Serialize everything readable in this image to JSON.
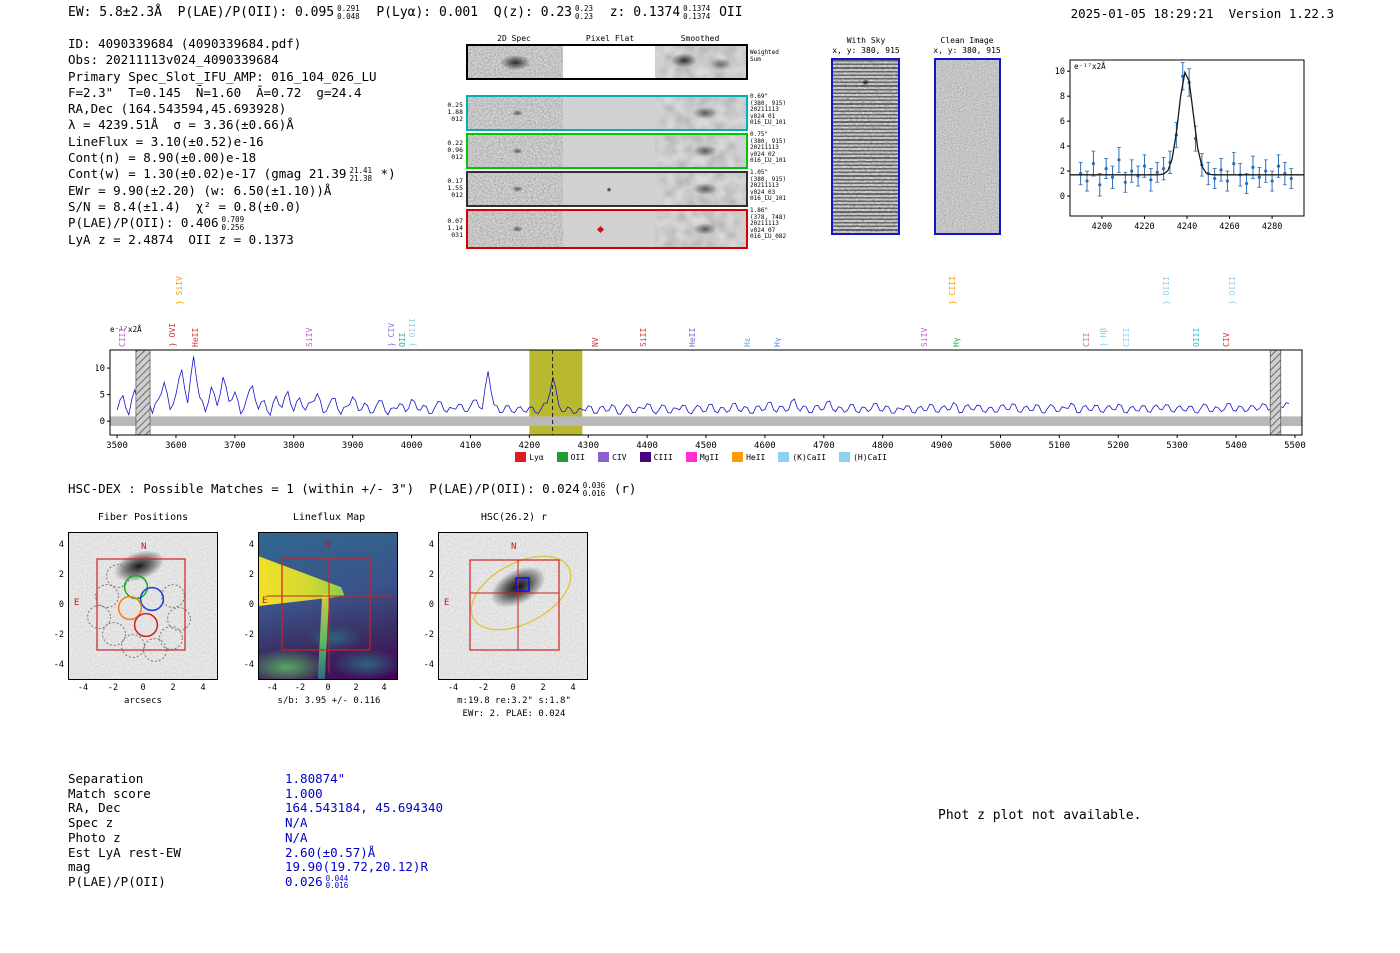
{
  "header": {
    "left_ew": "EW: 5.8±2.3Å  P(LAE)/P(OII): 0.095",
    "plae_hi": "0.291",
    "plae_lo": "0.048",
    "mid1": "  P(Lyα): 0.001  Q(z): 0.23",
    "qz_hi": "0.23",
    "qz_lo": "0.23",
    "mid2": "  z: 0.1374",
    "z_hi": "0.1374",
    "z_lo": "0.1374",
    "line_id": " OII",
    "timestamp": "2025-01-05 18:29:21  Version 1.22.3"
  },
  "info": {
    "l1": "ID: 4090339684 (4090339684.pdf)",
    "l2": "Obs: 20211113v024_4090339684",
    "l3": "Primary Spec_Slot_IFU_AMP: 016_104_026_LU",
    "l4": "F=2.3\"  T=0.145  N̄=1.60  Ā=0.72  g=24.4",
    "l5": "RA,Dec (164.543594,45.693928)",
    "l6": "λ = 4239.51Å  σ = 3.36(±0.66)Å",
    "l7": "LineFlux = 3.10(±0.52)e-16",
    "l8": "Cont(n) = 8.90(±0.00)e-18",
    "l9_pre": "Cont(w) = 1.30(±0.02)e-17 (gmag 21.39",
    "l9_hi": "21.41",
    "l9_lo": "21.38",
    "l9_post": " *)",
    "l10": "EWr = 9.90(±2.20) (w: 6.50(±1.10))Å",
    "l11": "S/N = 8.4(±1.4)  χ² = 0.8(±0.0)",
    "l12_pre": "P(LAE)/P(OII): 0.406",
    "l12_hi": "0.709",
    "l12_lo": "0.256",
    "l13": "LyA z = 2.4874  OII z = 0.1373"
  },
  "cutouts": {
    "col_headers": [
      "2D Spec",
      "Pixel Flat",
      "Smoothed"
    ],
    "weighted_sum": [
      "Weighted",
      "Sum"
    ],
    "rows": [
      {
        "left": [
          "0.25",
          "1.88",
          "012"
        ],
        "right": [
          "0.69\"",
          "(380, 915)",
          "20211113",
          "v024_01",
          "016_LU_101"
        ],
        "border": "#00b2b2"
      },
      {
        "left": [
          "0.22",
          "0.96",
          "012"
        ],
        "right": [
          "0.75\"",
          "(380, 915)",
          "20211113",
          "v024_02",
          "016_LU_101"
        ],
        "border": "#00c800"
      },
      {
        "left": [
          "0.17",
          "1.55",
          "012"
        ],
        "right": [
          "1.05\"",
          "(380, 915)",
          "20211113",
          "v024_03",
          "016_LU_101"
        ],
        "border": "#303030"
      },
      {
        "left": [
          "0.07",
          "1.14",
          "031"
        ],
        "right": [
          "1.86\"",
          "(378, 748)",
          "20211113",
          "v024_07",
          "016_LU_082"
        ],
        "border": "#d40000"
      }
    ]
  },
  "sky": {
    "with_sky": {
      "title": "With Sky",
      "coords": "x, y: 380, 915"
    },
    "clean": {
      "title": "Clean Image",
      "coords": "x, y: 380, 915"
    }
  },
  "hsc": {
    "header_pre": "HSC-DEX : Possible Matches = 1 (within +/- 3\")  P(LAE)/P(OII): 0.024",
    "header_hi": "0.036",
    "header_lo": "0.016",
    "header_post": " (r)",
    "ticks": [
      -4,
      -2,
      0,
      2,
      4
    ],
    "compass": {
      "n": "N",
      "e": "E"
    },
    "panels": [
      {
        "title": "Fiber Positions",
        "xlabel": "arcsecs"
      },
      {
        "title": "Lineflux Map",
        "caption": "s/b: 3.95 +/- 0.116"
      },
      {
        "title": "HSC(26.2) r",
        "caption1": "m:19.8 re:3.2\" s:1.8\"",
        "caption2": "EWr: 2. PLAE: 0.024"
      }
    ]
  },
  "match_table": {
    "value_color": "#0000cc",
    "rows": [
      {
        "label": "Separation",
        "value": "1.80874\""
      },
      {
        "label": "Match score",
        "value": "1.000"
      },
      {
        "label": "RA, Dec",
        "value": "164.543184, 45.694340"
      },
      {
        "label": "Spec z",
        "value": "N/A"
      },
      {
        "label": "Photo z",
        "value": "N/A"
      },
      {
        "label": "Est LyA rest-EW",
        "value": "2.60(±0.57)Å"
      },
      {
        "label": "mag",
        "value": "19.90(19.72,20.12)R"
      },
      {
        "label": "P(LAE)/P(OII)",
        "value": "0.026",
        "hi": "0.044",
        "lo": "0.016"
      }
    ]
  },
  "notice": "Phot z plot not available.",
  "chart_data": [
    {
      "type": "scatter",
      "name": "emission-line-gaussian-fit",
      "title": "",
      "xlabel": "",
      "ylabel": "e⁻¹⁷x2Å",
      "xlim": [
        4185,
        4295
      ],
      "ylim": [
        -1.6,
        10.9
      ],
      "xticks": [
        4200,
        4220,
        4240,
        4260,
        4280
      ],
      "yticks": [
        0,
        2,
        4,
        6,
        8,
        10
      ],
      "points_x": [
        4190,
        4193,
        4196,
        4199,
        4202,
        4205,
        4208,
        4211,
        4214,
        4217,
        4220,
        4223,
        4226,
        4229,
        4232,
        4235,
        4238,
        4241,
        4244,
        4247,
        4250,
        4253,
        4256,
        4259,
        4262,
        4265,
        4268,
        4271,
        4274,
        4277,
        4280,
        4283,
        4286,
        4289
      ],
      "points_y": [
        1.8,
        1.2,
        2.6,
        0.9,
        2.2,
        1.5,
        2.9,
        1.1,
        2.0,
        1.6,
        2.4,
        1.3,
        1.9,
        2.2,
        2.7,
        4.9,
        9.6,
        9.1,
        4.6,
        2.5,
        1.8,
        1.4,
        2.1,
        1.2,
        2.6,
        1.7,
        1.0,
        2.3,
        1.5,
        2.0,
        1.2,
        2.4,
        1.8,
        1.4
      ],
      "points_yerr": [
        0.9,
        0.8,
        1.0,
        0.9,
        0.8,
        0.9,
        1.0,
        0.8,
        0.9,
        0.8,
        0.9,
        0.9,
        0.8,
        0.9,
        0.9,
        1.0,
        1.1,
        1.1,
        1.0,
        0.9,
        0.9,
        0.8,
        0.9,
        0.8,
        0.9,
        0.9,
        0.8,
        0.9,
        0.8,
        0.9,
        0.8,
        0.9,
        0.9,
        0.8
      ],
      "fit": {
        "center": 4239.51,
        "sigma": 3.36,
        "amplitude": 8.3,
        "baseline": 1.7
      }
    },
    {
      "type": "line",
      "name": "full-spectrum",
      "title": "",
      "xlabel": "",
      "ylabel": "e⁻¹⁷x2Å",
      "xlim": [
        3488,
        5512
      ],
      "ylim": [
        -2.6,
        13.4
      ],
      "xticks": [
        3500,
        3600,
        3700,
        3800,
        3900,
        4000,
        4100,
        4200,
        4300,
        4400,
        4500,
        4600,
        4700,
        4800,
        4900,
        5000,
        5100,
        5200,
        5300,
        5400,
        5500
      ],
      "yticks": [
        0,
        5,
        10
      ],
      "x_start": 3500,
      "x_step": 10,
      "values": [
        2.1,
        4.8,
        1.2,
        5.9,
        2.8,
        6.2,
        1.5,
        4.1,
        7.3,
        2.2,
        5.1,
        9.7,
        3.4,
        12.2,
        4.6,
        1.8,
        6.4,
        2.9,
        8.3,
        3.7,
        5.5,
        1.4,
        4.2,
        6.6,
        2.3,
        3.9,
        1.1,
        4.7,
        2.6,
        5.6,
        1.9,
        4.4,
        2.1,
        3.6,
        5.2,
        1.6,
        3.1,
        4.3,
        1.3,
        2.8,
        4.6,
        2.0,
        3.4,
        1.5,
        2.9,
        3.8,
        1.2,
        2.5,
        3.3,
        1.8,
        4.1,
        2.2,
        3.0,
        1.4,
        2.7,
        3.6,
        1.7,
        2.4,
        3.2,
        1.9,
        2.8,
        4.0,
        2.3,
        9.4,
        3.1,
        1.6,
        2.9,
        1.8,
        2.5,
        1.9,
        2.6,
        1.7,
        2.3,
        3.4,
        8.3,
        3.0,
        1.8,
        2.4,
        1.6,
        2.2,
        2.9,
        1.5,
        2.6,
        1.9,
        3.1,
        1.4,
        2.3,
        2.8,
        1.6,
        2.5,
        3.3,
        1.8,
        2.1,
        2.9,
        1.5,
        2.4,
        3.0,
        1.7,
        2.2,
        2.7,
        1.9,
        3.2,
        1.6,
        2.5,
        2.0,
        3.4,
        1.8,
        2.6,
        1.5,
        2.9,
        2.2,
        3.6,
        1.7,
        2.8,
        2.1,
        4.2,
        1.9,
        2.7,
        1.6,
        3.0,
        2.3,
        3.8,
        1.8,
        2.5,
        2.0,
        3.1,
        1.6,
        2.6,
        2.2,
        3.3,
        1.9,
        2.7,
        1.5,
        2.4,
        2.9,
        1.7,
        2.5,
        2.0,
        3.2,
        1.8,
        2.6,
        2.1,
        3.5,
        1.6,
        2.8,
        2.3,
        3.0,
        1.9,
        2.5,
        1.7,
        2.9,
        2.2,
        3.3,
        1.8,
        2.6,
        2.0,
        3.1,
        1.7,
        2.4,
        2.8,
        1.9,
        2.5,
        3.4,
        1.6,
        2.7,
        2.1,
        3.0,
        1.8,
        2.6,
        2.2,
        3.2,
        1.7,
        2.5,
        2.0,
        2.9,
        1.8,
        2.7,
        2.3,
        3.1,
        1.9,
        2.6,
        2.1,
        2.8,
        1.7,
        2.4,
        3.0,
        1.8,
        2.5,
        2.2,
        3.3,
        1.9,
        2.7,
        2.0,
        2.8,
        2.4,
        3.1,
        2.2,
        3.9,
        2.6,
        3.3
      ],
      "err_amp": 0.9,
      "highlight": {
        "x0": 4200,
        "x1": 4290,
        "color": "#b9b931",
        "line_x": 4239.51
      },
      "hatch_bars": [
        {
          "x0": 3532,
          "x1": 3556
        },
        {
          "x0": 5458,
          "x1": 5476
        }
      ],
      "line_labels": [
        {
          "name": "CIII",
          "wave": 3524,
          "color": "#cc55cc",
          "tier": 2
        },
        {
          "name": "OVI",
          "wave": 3608,
          "color": "#e03030",
          "tier": 2,
          "brace": true
        },
        {
          "name": "SiIV",
          "wave": 3620,
          "color": "#ff9b00",
          "tier": 1,
          "brace": true
        },
        {
          "name": "HeII",
          "wave": 3648,
          "color": "#e03030",
          "tier": 2
        },
        {
          "name": "SiIV",
          "wave": 3842,
          "color": "#cc55cc",
          "tier": 2
        },
        {
          "name": "CIV",
          "wave": 3980,
          "color": "#8f6fe8",
          "tier": 2,
          "brace": true
        },
        {
          "name": "OII",
          "wave": 3999,
          "color": "#2fa0a0",
          "tier": 2
        },
        {
          "name": "OIII",
          "wave": 4016,
          "color": "#8fd0ef",
          "tier": 2,
          "brace": true
        },
        {
          "name": "NV",
          "wave": 4326,
          "color": "#e03030",
          "tier": 2
        },
        {
          "name": "SiII",
          "wave": 4409,
          "color": "#e03030",
          "tier": 2
        },
        {
          "name": "HeII",
          "wave": 4492,
          "color": "#7f5fd0",
          "tier": 2
        },
        {
          "name": "Hε",
          "wave": 4585,
          "color": "#5f9fd8",
          "tier": 2
        },
        {
          "name": "Hγ",
          "wave": 4635,
          "color": "#4f8fe0",
          "tier": 2
        },
        {
          "name": "SiIV",
          "wave": 4886,
          "color": "#cc55cc",
          "tier": 2
        },
        {
          "name": "CIII",
          "wave": 4933,
          "color": "#ff9b00",
          "tier": 1,
          "brace": true
        },
        {
          "name": "Hγ",
          "wave": 4940,
          "color": "#22aa22",
          "tier": 2
        },
        {
          "name": "CII",
          "wave": 5160,
          "color": "#e06090",
          "tier": 2
        },
        {
          "name": "Hβ",
          "wave": 5190,
          "color": "#8fd0ef",
          "tier": 2,
          "brace": true
        },
        {
          "name": "CIII",
          "wave": 5228,
          "color": "#8fd0ef",
          "tier": 2
        },
        {
          "name": "OIII",
          "wave": 5297,
          "color": "#8fd0ef",
          "tier": 1,
          "brace": true
        },
        {
          "name": "OIII",
          "wave": 5347,
          "color": "#2fbfbf",
          "tier": 2
        },
        {
          "name": "CIV",
          "wave": 5399,
          "color": "#e03030",
          "tier": 2
        },
        {
          "name": "OIII",
          "wave": 5408,
          "color": "#8fd0ef",
          "tier": 1,
          "brace": true
        }
      ],
      "legend": [
        {
          "label": "Lyα",
          "color": "#e31a1c"
        },
        {
          "label": "OII",
          "color": "#1f9e33"
        },
        {
          "label": "CIV",
          "color": "#8a5fd0"
        },
        {
          "label": "CIII",
          "color": "#4b0082"
        },
        {
          "label": "MgII",
          "color": "#ff2fd4"
        },
        {
          "label": "HeII",
          "color": "#ff9b00"
        },
        {
          "label": "(K)CaII",
          "color": "#8fd0ef"
        },
        {
          "label": "(H)CaII",
          "color": "#8fd0ef"
        }
      ]
    }
  ]
}
